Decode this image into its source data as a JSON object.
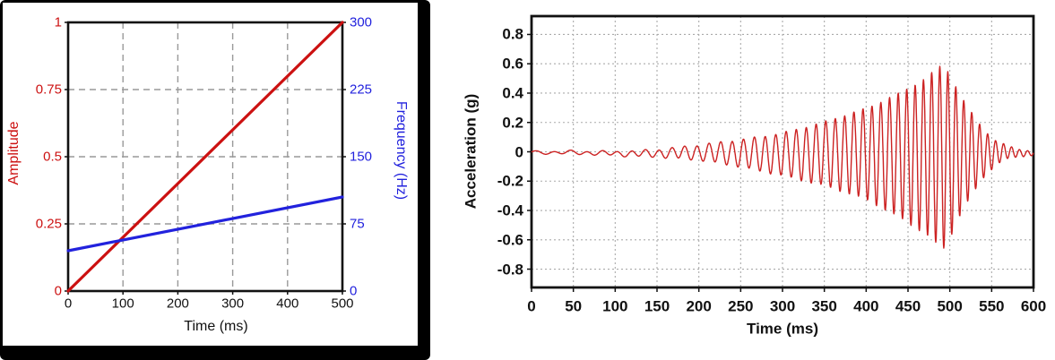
{
  "chart_data": [
    {
      "id": "sweep-parameters",
      "type": "line",
      "xlabel": "Time (ms)",
      "ylabel_left": "Amplitude",
      "ylabel_right": "Frequency (Hz)",
      "xlim": [
        0,
        500
      ],
      "ylim_left": [
        0,
        1
      ],
      "ylim_right": [
        0,
        300
      ],
      "x_ticks": [
        "0",
        "100",
        "200",
        "300",
        "400",
        "500"
      ],
      "y_ticks_left": [
        "0",
        "0.25",
        "0.5",
        "0.75",
        "1"
      ],
      "y_ticks_right": [
        "0",
        "75",
        "150",
        "225",
        "300"
      ],
      "grid_style": "dashed",
      "legend": "none",
      "series": [
        {
          "name": "amplitude",
          "axis": "left",
          "color": "#cc1111",
          "points": [
            [
              0,
              0
            ],
            [
              500,
              1
            ]
          ]
        },
        {
          "name": "frequency",
          "axis": "right",
          "color": "#2222dd",
          "points": [
            [
              0,
              45
            ],
            [
              500,
              105
            ]
          ]
        }
      ],
      "colors": {
        "left_axis": "#cc1111",
        "right_axis": "#2222dd",
        "grid": "#999999",
        "frame": "#111111",
        "panel_border": "#000000",
        "text": "#111111"
      }
    },
    {
      "id": "acceleration-time-history",
      "type": "line",
      "xlabel": "Time (ms)",
      "ylabel": "Acceleration (g)",
      "xlim": [
        0,
        600
      ],
      "ylim": [
        -0.925,
        0.925
      ],
      "x_ticks": [
        "0",
        "50",
        "100",
        "150",
        "200",
        "250",
        "300",
        "350",
        "400",
        "450",
        "500",
        "550",
        "600"
      ],
      "y_ticks": [
        "0.8",
        "0.6",
        "0.4",
        "0.2",
        "0",
        "-0.2",
        "-0.4",
        "-0.6",
        "-0.8"
      ],
      "grid_style": "dotted",
      "legend": "none",
      "signal": {
        "kind": "linear-sweep-chirp",
        "f0_hz": 45,
        "f1_hz": 105,
        "sweep_end_ms": 500,
        "duration_ms": 600,
        "sample_step_ms": 0.4,
        "peak_value_g": 0.61,
        "min_value_g": -0.65,
        "peak_time_ms": 492,
        "dc_offset_g": -0.008,
        "negative_asymmetry": 1.07,
        "envelope_points": [
          [
            0,
            0.008
          ],
          [
            100,
            0.014
          ],
          [
            150,
            0.025
          ],
          [
            200,
            0.05
          ],
          [
            250,
            0.09
          ],
          [
            300,
            0.14
          ],
          [
            350,
            0.21
          ],
          [
            400,
            0.3
          ],
          [
            440,
            0.41
          ],
          [
            470,
            0.51
          ],
          [
            492,
            0.61
          ],
          [
            500,
            0.54
          ],
          [
            512,
            0.4
          ],
          [
            525,
            0.28
          ],
          [
            540,
            0.16
          ],
          [
            555,
            0.08
          ],
          [
            570,
            0.04
          ],
          [
            585,
            0.022
          ],
          [
            600,
            0.015
          ]
        ],
        "noise_components": [
          {
            "amp": 0.005,
            "freq_hz": 23,
            "phase": 1.3
          },
          {
            "amp": 0.004,
            "freq_hz": 5.7,
            "phase": 0.4
          }
        ],
        "color": "#cc2222"
      },
      "colors": {
        "axis_text": "#111111",
        "grid": "#aaaaaa",
        "frame": "#111111",
        "line": "#cc2222"
      }
    }
  ]
}
